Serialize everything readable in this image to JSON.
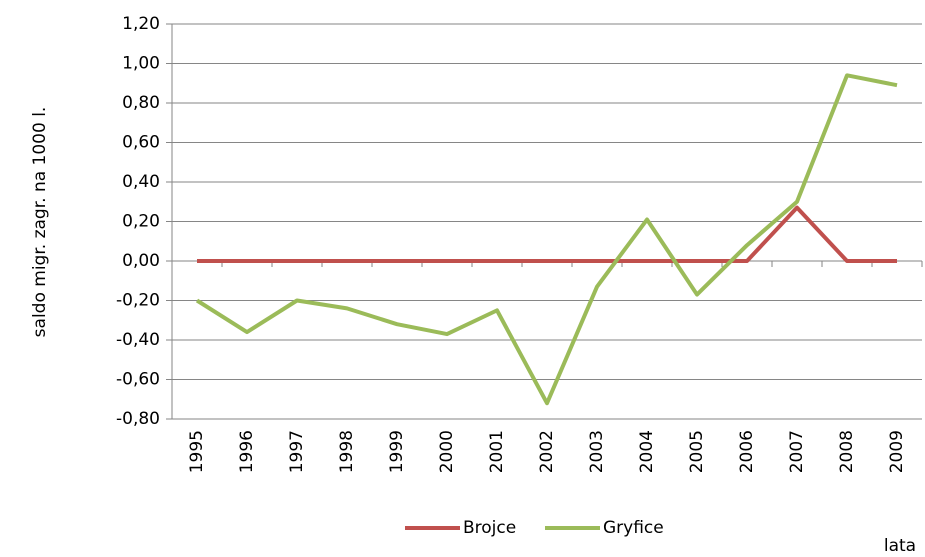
{
  "chart_data": {
    "type": "line",
    "ylabel": "saldo migr. zagr. na 1000 l.",
    "xlabel": "lata",
    "categories": [
      "1995",
      "1996",
      "1997",
      "1998",
      "1999",
      "2000",
      "2001",
      "2002",
      "2003",
      "2004",
      "2005",
      "2006",
      "2007",
      "2008",
      "2009"
    ],
    "series": [
      {
        "name": "Brojce",
        "color": "#c0504d",
        "values": [
          0,
          0,
          0,
          0,
          0,
          0,
          0,
          0,
          0,
          0,
          0,
          0,
          0.27,
          0,
          0
        ]
      },
      {
        "name": "Gryfice",
        "color": "#9bbb59",
        "values": [
          -0.2,
          -0.36,
          -0.2,
          -0.24,
          -0.32,
          -0.37,
          -0.25,
          -0.72,
          -0.13,
          0.21,
          -0.17,
          0.08,
          0.3,
          0.94,
          0.89
        ]
      }
    ],
    "ylim": [
      -0.8,
      1.2
    ],
    "yticks": [
      {
        "value": -0.8,
        "label": "-0,80"
      },
      {
        "value": -0.6,
        "label": "-0,60"
      },
      {
        "value": -0.4,
        "label": "-0,40"
      },
      {
        "value": -0.2,
        "label": "-0,20"
      },
      {
        "value": 0,
        "label": "0,00"
      },
      {
        "value": 0.2,
        "label": "0,20"
      },
      {
        "value": 0.4,
        "label": "0,40"
      },
      {
        "value": 0.6,
        "label": "0,60"
      },
      {
        "value": 0.8,
        "label": "0,80"
      },
      {
        "value": 1.0,
        "label": "1,00"
      },
      {
        "value": 1.2,
        "label": "1,20"
      }
    ],
    "grid": true,
    "legend": "bottom"
  }
}
